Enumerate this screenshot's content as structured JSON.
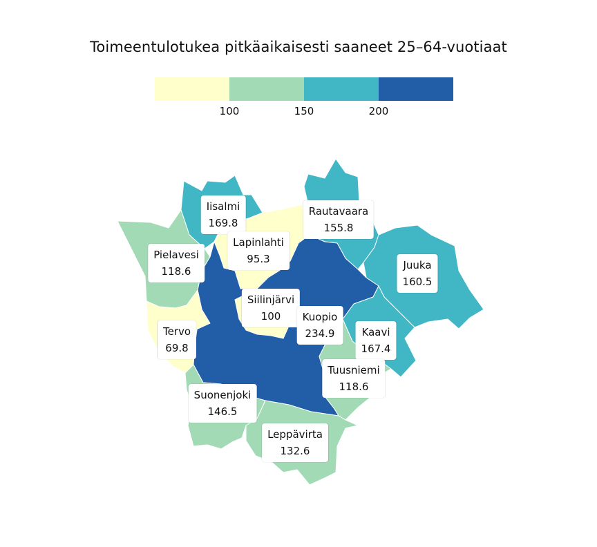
{
  "title": "Toimeentulotukea pitkäaikaisesti saaneet 25–64-vuotiaat",
  "legend": {
    "colors": [
      "#ffffcc",
      "#a1dab4",
      "#41b6c4",
      "#225ea8"
    ],
    "thresholds": [
      "100",
      "150",
      "200"
    ]
  },
  "regions": [
    {
      "name": "Iisalmi",
      "value": "169.8",
      "color": "#41b6c4"
    },
    {
      "name": "Rautavaara",
      "value": "155.8",
      "color": "#41b6c4"
    },
    {
      "name": "Lapinlahti",
      "value": "95.3",
      "color": "#ffffcc"
    },
    {
      "name": "Pielavesi",
      "value": "118.6",
      "color": "#a1dab4"
    },
    {
      "name": "Juuka",
      "value": "160.5",
      "color": "#41b6c4"
    },
    {
      "name": "Siilinjärvi",
      "value": "100",
      "color": "#ffffcc"
    },
    {
      "name": "Kuopio",
      "value": "234.9",
      "color": "#225ea8"
    },
    {
      "name": "Tervo",
      "value": "69.8",
      "color": "#ffffcc"
    },
    {
      "name": "Kaavi",
      "value": "167.4",
      "color": "#41b6c4"
    },
    {
      "name": "Tuusniemi",
      "value": "118.6",
      "color": "#a1dab4"
    },
    {
      "name": "Suonenjoki",
      "value": "146.5",
      "color": "#a1dab4"
    },
    {
      "name": "Leppävirta",
      "value": "132.6",
      "color": "#a1dab4"
    }
  ]
}
